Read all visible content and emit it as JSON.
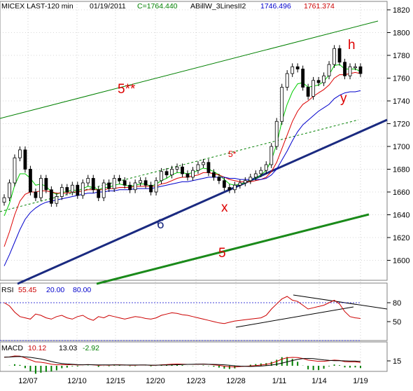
{
  "chart_data": {
    "type": "candlestick",
    "header": {
      "symbol": "MICEX LAST-120 min",
      "date": "01/19/2011",
      "close": "C=1764.440",
      "indicator": "ABillW_3LinesII2",
      "v1": "1746.496",
      "v2": "1761.374"
    },
    "price_axis": {
      "ticks": [
        1600,
        1620,
        1640,
        1660,
        1680,
        1700,
        1720,
        1740,
        1760,
        1780,
        1800,
        1820
      ],
      "range": [
        1580,
        1826
      ]
    },
    "date_labels": [
      "12/07",
      "12/10",
      "12/15",
      "12/20",
      "12/23",
      "12/28",
      "1/11",
      "1/14",
      "1/19"
    ],
    "series": [
      {
        "role": "close",
        "color": "#000000",
        "values": [
          1655,
          1668,
          1690,
          1697,
          1680,
          1660,
          1655,
          1672,
          1662,
          1650,
          1656,
          1664,
          1660,
          1666,
          1657,
          1668,
          1672,
          1662,
          1655,
          1668,
          1663,
          1672,
          1670,
          1666,
          1662,
          1668,
          1670,
          1666,
          1660,
          1670,
          1678,
          1675,
          1680,
          1682,
          1676,
          1673,
          1679,
          1684,
          1686,
          1677,
          1673,
          1670,
          1664,
          1662,
          1666,
          1668,
          1670,
          1673,
          1676,
          1679,
          1684,
          1700,
          1722,
          1752,
          1764,
          1770,
          1768,
          1752,
          1744,
          1758,
          1756,
          1762,
          1772,
          1786,
          1774,
          1762,
          1770,
          1770,
          1764
        ]
      },
      {
        "role": "ma-green",
        "color": "#00cc00",
        "values": [
          1639,
          1650,
          1666,
          1676,
          1676,
          1672,
          1666,
          1667,
          1665,
          1660,
          1658,
          1660,
          1660,
          1662,
          1661,
          1663,
          1665,
          1664,
          1662,
          1664,
          1664,
          1666,
          1667,
          1666,
          1665,
          1666,
          1667,
          1667,
          1665,
          1667,
          1670,
          1672,
          1675,
          1677,
          1677,
          1676,
          1677,
          1679,
          1681,
          1680,
          1678,
          1675,
          1671,
          1667,
          1666,
          1667,
          1668,
          1670,
          1672,
          1675,
          1679,
          1688,
          1702,
          1722,
          1737,
          1748,
          1755,
          1756,
          1752,
          1753,
          1754,
          1757,
          1763,
          1771,
          1772,
          1768,
          1768,
          1768,
          1766
        ]
      },
      {
        "role": "ma-red",
        "color": "#dd0000",
        "values": [
          1612,
          1625,
          1640,
          1652,
          1658,
          1660,
          1660,
          1661,
          1661,
          1660,
          1659,
          1659,
          1659,
          1660,
          1660,
          1661,
          1662,
          1662,
          1662,
          1662,
          1663,
          1663,
          1664,
          1664,
          1664,
          1665,
          1665,
          1665,
          1665,
          1665,
          1667,
          1668,
          1670,
          1672,
          1673,
          1673,
          1674,
          1675,
          1677,
          1677,
          1676,
          1675,
          1673,
          1671,
          1670,
          1669,
          1669,
          1669,
          1670,
          1671,
          1673,
          1678,
          1686,
          1698,
          1710,
          1722,
          1731,
          1737,
          1740,
          1744,
          1747,
          1750,
          1754,
          1760,
          1763,
          1763,
          1764,
          1765,
          1764
        ]
      },
      {
        "role": "ma-blue",
        "color": "#0000cc",
        "values": [
          1595,
          1605,
          1616,
          1627,
          1636,
          1642,
          1646,
          1649,
          1651,
          1652,
          1653,
          1654,
          1655,
          1656,
          1657,
          1658,
          1659,
          1659,
          1660,
          1660,
          1661,
          1661,
          1662,
          1662,
          1662,
          1663,
          1663,
          1663,
          1663,
          1664,
          1665,
          1666,
          1667,
          1668,
          1669,
          1669,
          1670,
          1671,
          1672,
          1673,
          1673,
          1673,
          1673,
          1672,
          1672,
          1671,
          1671,
          1671,
          1671,
          1671,
          1672,
          1675,
          1680,
          1688,
          1696,
          1705,
          1713,
          1719,
          1723,
          1727,
          1731,
          1734,
          1737,
          1742,
          1745,
          1747,
          1748,
          1748,
          1749
        ]
      }
    ],
    "trendlines": [
      {
        "label": "5**",
        "color": "#008000"
      },
      {
        "label": "5*",
        "color": "#008000",
        "style": "dashed"
      },
      {
        "label": "6",
        "color": "#1a2a80"
      },
      {
        "label": "5",
        "color": "#1a8a1a"
      }
    ],
    "wave_labels": [
      "x",
      "y",
      "h"
    ],
    "rsi": {
      "label": "RSI",
      "value": "55.45",
      "levels": [
        "20.00",
        "80.00"
      ],
      "ticks": [
        50,
        80
      ],
      "values": [
        80,
        75,
        65,
        58,
        56,
        54,
        62,
        60,
        56,
        54,
        58,
        60,
        56,
        54,
        58,
        60,
        55,
        52,
        58,
        56,
        60,
        58,
        56,
        54,
        56,
        58,
        57,
        55,
        54,
        56,
        60,
        62,
        64,
        63,
        61,
        60,
        58,
        56,
        54,
        52,
        50,
        48,
        47,
        49,
        51,
        52,
        53,
        54,
        55,
        56,
        60,
        70,
        78,
        86,
        90,
        84,
        82,
        76,
        70,
        72,
        74,
        76,
        80,
        84,
        78,
        66,
        58,
        56,
        55
      ]
    },
    "macd": {
      "label": "MACD",
      "v1": "10.12",
      "v2": "13.03",
      "v3": "-2.92",
      "ticks": [
        15
      ]
    }
  }
}
